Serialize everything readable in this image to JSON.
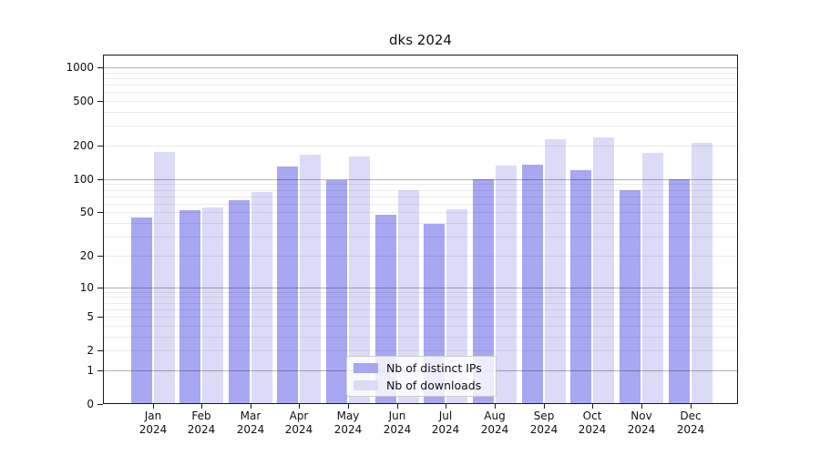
{
  "chart_data": {
    "type": "bar",
    "title": "dks 2024",
    "xlabel": "",
    "ylabel": "",
    "y_scale": "log1p (position proportional to log(1+value); linear-compressed near 0)",
    "yticks": [
      0,
      1,
      2,
      5,
      10,
      20,
      50,
      100,
      200,
      500,
      1000
    ],
    "ylim": [
      0,
      1300
    ],
    "grid": "horizontal: major lines at 1,10,100,1000; faint minor log lines at 2-9,20-90,200-900",
    "legend_position": "lower center",
    "categories": [
      "Jan 2024",
      "Feb 2024",
      "Mar 2024",
      "Apr 2024",
      "May 2024",
      "Jun 2024",
      "Jul 2024",
      "Aug 2024",
      "Sep 2024",
      "Oct 2024",
      "Nov 2024",
      "Dec 2024"
    ],
    "series": [
      {
        "name": "Nb of distinct IPs",
        "color": "#a7a7f2",
        "values": [
          45,
          52,
          64,
          130,
          98,
          48,
          39,
          99,
          135,
          120,
          79,
          100
        ]
      },
      {
        "name": "Nb of downloads",
        "color": "#dbdbf8",
        "values": [
          174,
          56,
          77,
          165,
          160,
          80,
          53,
          133,
          228,
          235,
          171,
          212
        ]
      }
    ]
  }
}
